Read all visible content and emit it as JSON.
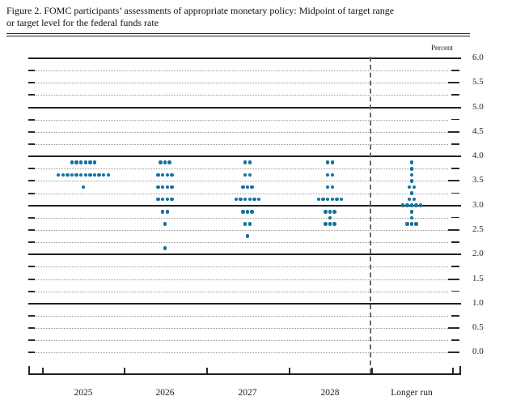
{
  "title": {
    "line1": "Figure 2. FOMC participants’ assessments of appropriate monetary policy: Midpoint of target range",
    "line2": "or target level for the federal funds rate"
  },
  "colors": {
    "dot": "#16719d",
    "solid_line": "#1f1f1f",
    "dotted_line": "#9a9a9a",
    "text": "#1a1a1a"
  },
  "chart_data": {
    "type": "scatter",
    "subtype": "dot-plot",
    "title": "Figure 2. FOMC participants’ assessments of appropriate monetary policy: Midpoint of target range or target level for the federal funds rate",
    "ylabel": "Percent",
    "ylim": [
      0.0,
      6.0
    ],
    "grid_step": 0.25,
    "label_step": 0.5,
    "grid_on": true,
    "legend": "none",
    "y_tick_labels": [
      "6.0",
      "5.5",
      "5.0",
      "4.5",
      "4.0",
      "3.5",
      "3.0",
      "2.5",
      "2.0",
      "1.5",
      "1.0",
      "0.5",
      "0.0"
    ],
    "categories": [
      "2025",
      "2026",
      "2027",
      "2028",
      "Longer run"
    ],
    "dots": [
      {
        "category": "2025",
        "values": [
          {
            "rate": 3.875,
            "count": 6
          },
          {
            "rate": 3.625,
            "count": 12
          },
          {
            "rate": 3.375,
            "count": 1
          }
        ]
      },
      {
        "category": "2026",
        "values": [
          {
            "rate": 3.875,
            "count": 3
          },
          {
            "rate": 3.625,
            "count": 4
          },
          {
            "rate": 3.375,
            "count": 4
          },
          {
            "rate": 3.125,
            "count": 4
          },
          {
            "rate": 2.875,
            "count": 2
          },
          {
            "rate": 2.625,
            "count": 1
          },
          {
            "rate": 2.125,
            "count": 1
          }
        ]
      },
      {
        "category": "2027",
        "values": [
          {
            "rate": 3.875,
            "count": 2
          },
          {
            "rate": 3.625,
            "count": 2
          },
          {
            "rate": 3.375,
            "count": 3
          },
          {
            "rate": 3.125,
            "count": 6
          },
          {
            "rate": 2.875,
            "count": 3
          },
          {
            "rate": 2.625,
            "count": 2
          },
          {
            "rate": 2.375,
            "count": 1
          }
        ]
      },
      {
        "category": "2028",
        "values": [
          {
            "rate": 3.875,
            "count": 2
          },
          {
            "rate": 3.625,
            "count": 2
          },
          {
            "rate": 3.375,
            "count": 2
          },
          {
            "rate": 3.125,
            "count": 6
          },
          {
            "rate": 2.875,
            "count": 3
          },
          {
            "rate": 2.75,
            "count": 1
          },
          {
            "rate": 2.625,
            "count": 3
          }
        ]
      },
      {
        "category": "Longer run",
        "values": [
          {
            "rate": 3.875,
            "count": 1
          },
          {
            "rate": 3.75,
            "count": 1
          },
          {
            "rate": 3.625,
            "count": 1
          },
          {
            "rate": 3.5,
            "count": 1
          },
          {
            "rate": 3.375,
            "count": 2
          },
          {
            "rate": 3.25,
            "count": 1
          },
          {
            "rate": 3.125,
            "count": 2
          },
          {
            "rate": 3.0,
            "count": 5
          },
          {
            "rate": 2.875,
            "count": 1
          },
          {
            "rate": 2.75,
            "count": 1
          },
          {
            "rate": 2.625,
            "count": 3
          }
        ]
      }
    ]
  }
}
